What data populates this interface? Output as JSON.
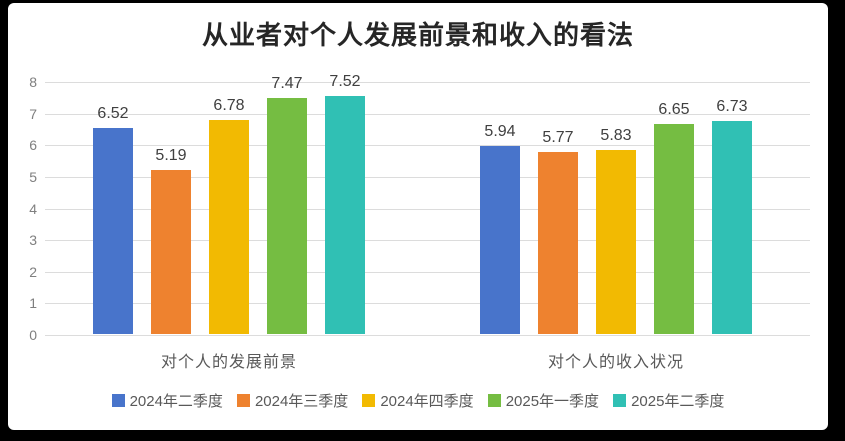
{
  "frame": {
    "border_color": "#000000",
    "background_color": "#ffffff"
  },
  "chart_data": {
    "type": "bar",
    "title": "从业者对个人发展前景和收入的看法",
    "categories": [
      "对个人的发展前景",
      "对个人的收入状况"
    ],
    "series": [
      {
        "name": "2024年二季度",
        "color": "#4874CB",
        "values": [
          6.52,
          5.94
        ]
      },
      {
        "name": "2024年三季度",
        "color": "#EE822F",
        "values": [
          5.19,
          5.77
        ]
      },
      {
        "name": "2024年四季度",
        "color": "#F2BA02",
        "values": [
          6.78,
          5.83
        ]
      },
      {
        "name": "2025年一季度",
        "color": "#75BD42",
        "values": [
          7.47,
          6.65
        ]
      },
      {
        "name": "2025年二季度",
        "color": "#30C0B4",
        "values": [
          7.52,
          6.73
        ]
      }
    ],
    "data_labels": [
      "6.52",
      "5.19",
      "6.78",
      "7.47",
      "7.52",
      "5.94",
      "5.77",
      "5.83",
      "6.65",
      "6.73"
    ],
    "y_axis": {
      "min": 0,
      "max": 8,
      "step": 1,
      "ticks": [
        "0",
        "1",
        "2",
        "3",
        "4",
        "5",
        "6",
        "7",
        "8"
      ]
    },
    "grid": true,
    "gridline_color": "#dcdcdc",
    "legend_position": "bottom"
  }
}
